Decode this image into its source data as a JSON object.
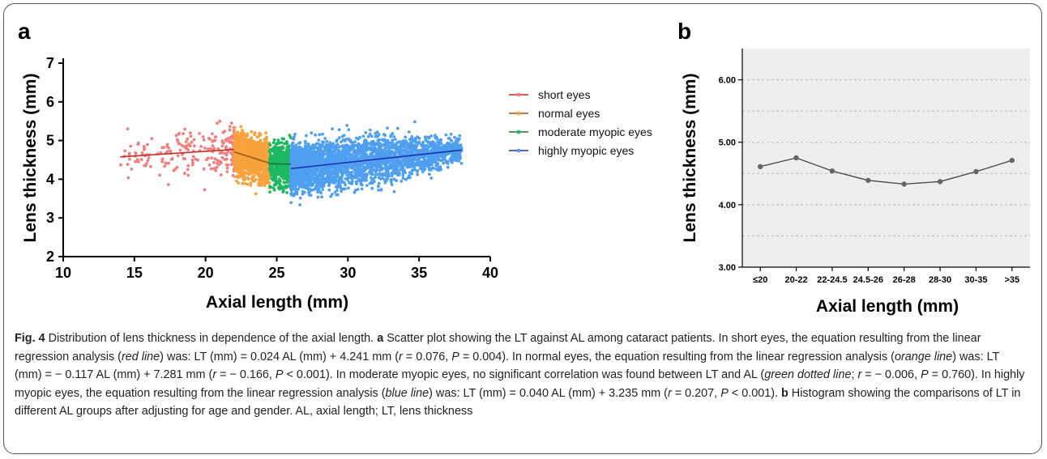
{
  "figure": {
    "caption_parts": [
      {
        "t": "Fig. 4",
        "s": "b"
      },
      {
        "t": " Distribution of lens thickness in dependence of the axial length. ",
        "s": ""
      },
      {
        "t": "a",
        "s": "b"
      },
      {
        "t": " Scatter plot showing the LT against AL among cataract patients. In short eyes, the equation resulting from the linear regression analysis (",
        "s": ""
      },
      {
        "t": "red line",
        "s": "i"
      },
      {
        "t": ") was: LT (mm) = 0.024 AL (mm) + 4.241 mm (",
        "s": ""
      },
      {
        "t": "r",
        "s": "i"
      },
      {
        "t": " = 0.076, ",
        "s": ""
      },
      {
        "t": "P",
        "s": "i"
      },
      {
        "t": " = 0.004). In normal eyes, the equation resulting from the linear regression analysis (",
        "s": ""
      },
      {
        "t": "orange line",
        "s": "i"
      },
      {
        "t": ") was: LT (mm) = − 0.117 AL (mm) + 7.281 mm (",
        "s": ""
      },
      {
        "t": "r",
        "s": "i"
      },
      {
        "t": " = − 0.166, ",
        "s": ""
      },
      {
        "t": "P",
        "s": "i"
      },
      {
        "t": " < 0.001). In moderate myopic eyes, no significant correlation was found between LT and AL (",
        "s": ""
      },
      {
        "t": "green dotted line",
        "s": "i"
      },
      {
        "t": "; ",
        "s": ""
      },
      {
        "t": "r",
        "s": "i"
      },
      {
        "t": " = − 0.006, ",
        "s": ""
      },
      {
        "t": "P",
        "s": "i"
      },
      {
        "t": " = 0.760). In highly myopic eyes, the equation resulting from the linear regression analysis (",
        "s": ""
      },
      {
        "t": "blue line",
        "s": "i"
      },
      {
        "t": ") was: LT (mm) = 0.040 AL (mm) + 3.235 mm (",
        "s": ""
      },
      {
        "t": "r",
        "s": "i"
      },
      {
        "t": " = 0.207, ",
        "s": ""
      },
      {
        "t": "P",
        "s": "i"
      },
      {
        "t": " < 0.001). ",
        "s": ""
      },
      {
        "t": "b",
        "s": "b"
      },
      {
        "t": " Histogram showing the comparisons of LT in different AL groups after adjusting for age and gender. AL, axial length; LT, lens thickness",
        "s": ""
      }
    ]
  },
  "chart_data": [
    {
      "panel": "a",
      "type": "scatter",
      "xlabel": "Axial length (mm)",
      "ylabel": "Lens thickness (mm)",
      "xlim": [
        10,
        40
      ],
      "ylim": [
        2,
        7
      ],
      "xticks": [
        10,
        15,
        20,
        25,
        30,
        35,
        40
      ],
      "yticks": [
        2,
        3,
        4,
        5,
        6,
        7
      ],
      "grid": false,
      "legend_position": "right",
      "series": [
        {
          "name": "short eyes",
          "color": "#f08080",
          "line_color": "#c0302a",
          "x_range": [
            14,
            22
          ],
          "fit": {
            "x": [
              14.0,
              22.0
            ],
            "y": [
              4.577,
              4.769
            ]
          }
        },
        {
          "name": "normal eyes",
          "color": "#f7a23c",
          "line_color": "#9a5a1a",
          "x_range": [
            22,
            24.5
          ],
          "fit": {
            "x": [
              22.0,
              24.5
            ],
            "y": [
              4.707,
              4.415
            ]
          }
        },
        {
          "name": "moderate myopic eyes",
          "color": "#1db862",
          "line_color": "#1d6f3a",
          "x_range": [
            24.5,
            26
          ],
          "fit": {
            "x": [
              24.5,
              26.0
            ],
            "y": [
              4.4,
              4.39
            ]
          }
        },
        {
          "name": "highly myopic eyes",
          "color": "#4f9ff0",
          "line_color": "#1e2ea8",
          "x_range": [
            26,
            38
          ],
          "fit": {
            "x": [
              26.0,
              38.0
            ],
            "y": [
              4.275,
              4.755
            ]
          }
        }
      ]
    },
    {
      "panel": "b",
      "type": "line",
      "xlabel": "Axial length (mm)",
      "ylabel": "Lens thickness (mm)",
      "categories": [
        "≤20",
        "20-22",
        "22-24.5",
        "24.5-26",
        "26-28",
        "28-30",
        "30-35",
        ">35"
      ],
      "values": [
        4.61,
        4.75,
        4.54,
        4.39,
        4.33,
        4.37,
        4.53,
        4.71
      ],
      "ylim": [
        3.0,
        6.5
      ],
      "yticks": [
        "3.00",
        "4.00",
        "5.00",
        "6.00"
      ],
      "minor_gridlines": [
        3.5,
        4.0,
        4.5,
        5.0,
        5.5,
        6.0
      ],
      "grid": true,
      "background": "#eeeeee",
      "line_color": "#444444"
    }
  ]
}
